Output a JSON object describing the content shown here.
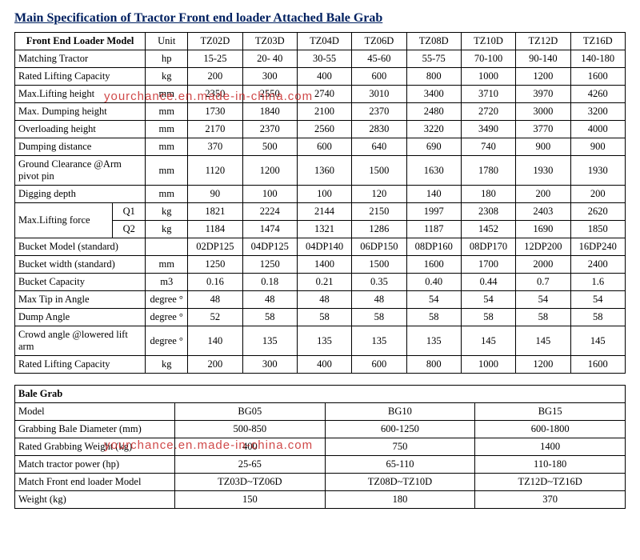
{
  "title": "Main Specification of Tractor Front end loader Attached Bale Grab",
  "watermark": "yourchance.en.made-in-china.com",
  "loader": {
    "header": [
      "Front End Loader Model",
      "Unit",
      "TZ02D",
      "TZ03D",
      "TZ04D",
      "TZ06D",
      "TZ08D",
      "TZ10D",
      "TZ12D",
      "TZ16D"
    ],
    "rows": [
      {
        "label": "Matching Tractor",
        "unit": "hp",
        "v": [
          "15-25",
          "20- 40",
          "30-55",
          "45-60",
          "55-75",
          "70-100",
          "90-140",
          "140-180"
        ]
      },
      {
        "label": "Rated Lifting Capacity",
        "unit": "kg",
        "v": [
          "200",
          "300",
          "400",
          "600",
          "800",
          "1000",
          "1200",
          "1600"
        ]
      },
      {
        "label": "Max.Lifting height",
        "unit": "mm",
        "v": [
          "2350",
          "2550",
          "2740",
          "3010",
          "3400",
          "3710",
          "3970",
          "4260"
        ]
      },
      {
        "label": "Max. Dumping height",
        "unit": "mm",
        "v": [
          "1730",
          "1840",
          "2100",
          "2370",
          "2480",
          "2720",
          "3000",
          "3200"
        ]
      },
      {
        "label": "Overloading height",
        "unit": "mm",
        "v": [
          "2170",
          "2370",
          "2560",
          "2830",
          "3220",
          "3490",
          "3770",
          "4000"
        ]
      },
      {
        "label": "Dumping distance",
        "unit": "mm",
        "v": [
          "370",
          "500",
          "600",
          "640",
          "690",
          "740",
          "900",
          "900"
        ]
      },
      {
        "label": "Ground Clearance @Arm pivot pin",
        "unit": "mm",
        "v": [
          "1120",
          "1200",
          "1360",
          "1500",
          "1630",
          "1780",
          "1930",
          "1930"
        ]
      },
      {
        "label": "Digging depth",
        "unit": "mm",
        "v": [
          "90",
          "100",
          "100",
          "120",
          "140",
          "180",
          "200",
          "200"
        ]
      }
    ],
    "lifting_force": {
      "label": "Max.Lifting force",
      "q1": {
        "sub": "Q1",
        "unit": "kg",
        "v": [
          "1821",
          "2224",
          "2144",
          "2150",
          "1997",
          "2308",
          "2403",
          "2620"
        ]
      },
      "q2": {
        "sub": "Q2",
        "unit": "kg",
        "v": [
          "1184",
          "1474",
          "1321",
          "1286",
          "1187",
          "1452",
          "1690",
          "1850"
        ]
      }
    },
    "rows2": [
      {
        "label": "Bucket Model (standard)",
        "unit": "",
        "v": [
          "02DP125",
          "04DP125",
          "04DP140",
          "06DP150",
          "08DP160",
          "08DP170",
          "12DP200",
          "16DP240"
        ]
      },
      {
        "label": "Bucket width (standard)",
        "unit": "mm",
        "v": [
          "1250",
          "1250",
          "1400",
          "1500",
          "1600",
          "1700",
          "2000",
          "2400"
        ]
      },
      {
        "label": "Bucket Capacity",
        "unit": "m3",
        "v": [
          "0.16",
          "0.18",
          "0.21",
          "0.35",
          "0.40",
          "0.44",
          "0.7",
          "1.6"
        ]
      },
      {
        "label": "Max Tip in Angle",
        "unit": "degree °",
        "v": [
          "48",
          "48",
          "48",
          "48",
          "54",
          "54",
          "54",
          "54"
        ]
      },
      {
        "label": "Dump Angle",
        "unit": "degree °",
        "v": [
          "52",
          "58",
          "58",
          "58",
          "58",
          "58",
          "58",
          "58"
        ]
      },
      {
        "label": "Crowd angle @lowered lift arm",
        "unit": "degree °",
        "v": [
          "140",
          "135",
          "135",
          "135",
          "135",
          "145",
          "145",
          "145"
        ]
      },
      {
        "label": "Rated Lifting Capacity",
        "unit": "kg",
        "v": [
          "200",
          "300",
          "400",
          "600",
          "800",
          "1000",
          "1200",
          "1600"
        ]
      }
    ]
  },
  "balegrab": {
    "section": "Bale Grab",
    "rows": [
      {
        "label": "Model",
        "v": [
          "BG05",
          "BG10",
          "BG15"
        ]
      },
      {
        "label": "Grabbing Bale Diameter (mm)",
        "v": [
          "500-850",
          "600-1250",
          "600-1800"
        ]
      },
      {
        "label": "Rated Grabbing Weight (kg)",
        "v": [
          "400",
          "750",
          "1400"
        ]
      },
      {
        "label": "Match tractor power (hp)",
        "v": [
          "25-65",
          "65-110",
          "110-180"
        ]
      },
      {
        "label": "Match Front end loader Model",
        "v": [
          "TZ03D~TZ06D",
          "TZ08D~TZ10D",
          "TZ12D~TZ16D"
        ]
      },
      {
        "label": "Weight (kg)",
        "v": [
          "150",
          "180",
          "370"
        ]
      }
    ]
  }
}
